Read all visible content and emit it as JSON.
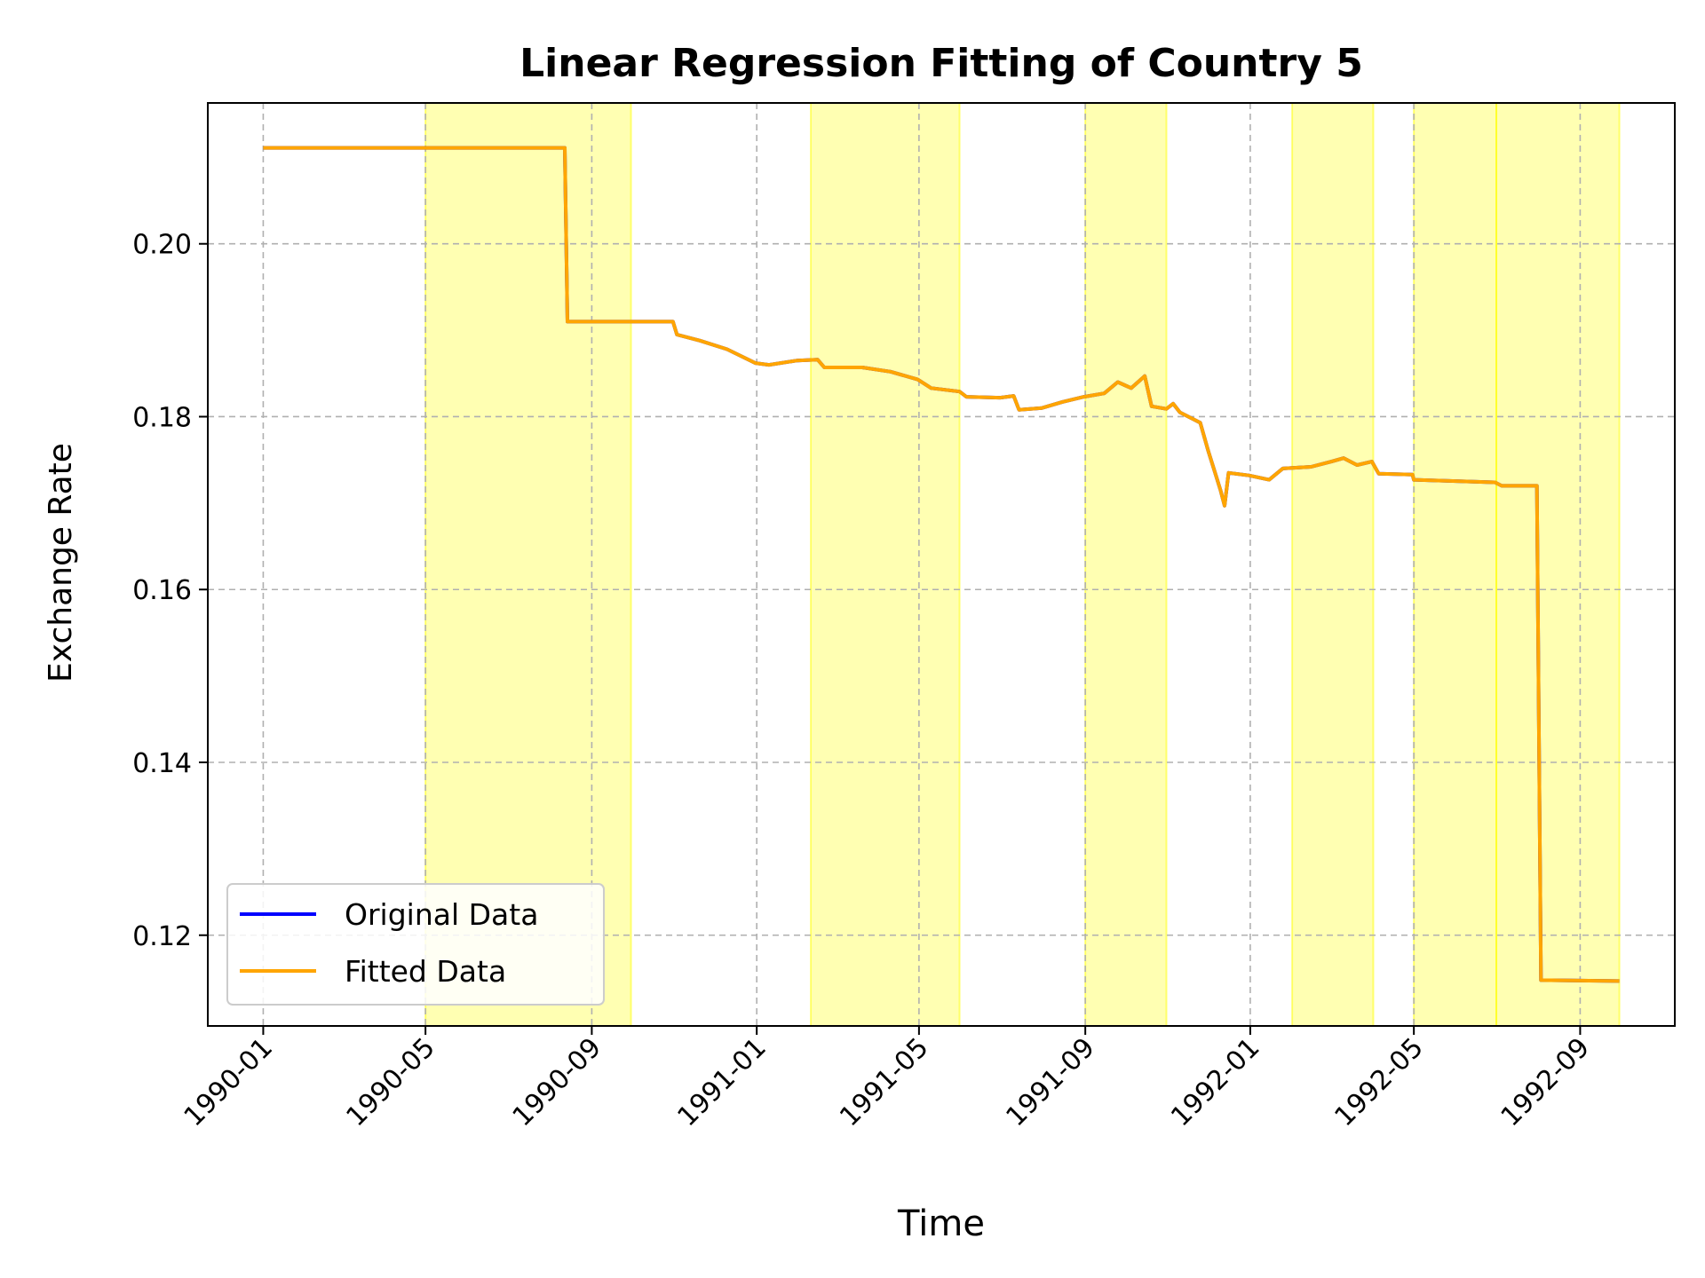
{
  "chart_data": {
    "type": "line",
    "title": "Linear Regression Fitting of Country 5",
    "xlabel": "Time",
    "ylabel": "Exchange Rate",
    "xlim": [
      "1989-11-21",
      "1992-11-10"
    ],
    "ylim": [
      0.1095,
      0.2163
    ],
    "x_ticks": [
      "1990-01",
      "1990-05",
      "1990-09",
      "1991-01",
      "1991-05",
      "1991-09",
      "1992-01",
      "1992-05",
      "1992-09"
    ],
    "y_ticks": [
      "0.12",
      "0.14",
      "0.16",
      "0.18",
      "0.20"
    ],
    "grid": true,
    "legend_position": "lower-left",
    "shaded_regions": [
      {
        "start": "1990-05-01",
        "end": "1990-09-30"
      },
      {
        "start": "1991-02-10",
        "end": "1991-05-31"
      },
      {
        "start": "1991-09-01",
        "end": "1991-10-31"
      },
      {
        "start": "1992-02-01",
        "end": "1992-04-01"
      },
      {
        "start": "1992-05-01",
        "end": "1992-07-01"
      },
      {
        "start": "1992-07-01",
        "end": "1992-09-30"
      }
    ],
    "series": [
      {
        "name": "Original Data",
        "color": "#0000ff",
        "points": [
          [
            "1990-01-01",
            0.2111
          ],
          [
            "1990-08-12",
            0.2111
          ],
          [
            "1990-08-14",
            0.191
          ],
          [
            "1990-10-31",
            0.191
          ],
          [
            "1990-11-03",
            0.1895
          ],
          [
            "1990-11-20",
            0.1888
          ],
          [
            "1990-12-10",
            0.1878
          ],
          [
            "1990-12-31",
            0.1862
          ],
          [
            "1991-01-10",
            0.186
          ],
          [
            "1991-01-31",
            0.1865
          ],
          [
            "1991-02-15",
            0.1866
          ],
          [
            "1991-02-20",
            0.1857
          ],
          [
            "1991-03-20",
            0.1857
          ],
          [
            "1991-04-10",
            0.1852
          ],
          [
            "1991-04-30",
            0.1843
          ],
          [
            "1991-05-10",
            0.1833
          ],
          [
            "1991-05-31",
            0.1829
          ],
          [
            "1991-06-05",
            0.1823
          ],
          [
            "1991-06-30",
            0.1822
          ],
          [
            "1991-07-10",
            0.1824
          ],
          [
            "1991-07-14",
            0.1808
          ],
          [
            "1991-07-31",
            0.181
          ],
          [
            "1991-08-15",
            0.1817
          ],
          [
            "1991-08-31",
            0.1823
          ],
          [
            "1991-09-15",
            0.1827
          ],
          [
            "1991-09-25",
            0.184
          ],
          [
            "1991-10-05",
            0.1833
          ],
          [
            "1991-10-15",
            0.1847
          ],
          [
            "1991-10-20",
            0.1812
          ],
          [
            "1991-10-31",
            0.1809
          ],
          [
            "1991-11-05",
            0.1815
          ],
          [
            "1991-11-10",
            0.1805
          ],
          [
            "1991-11-25",
            0.1793
          ],
          [
            "1991-12-01",
            0.176
          ],
          [
            "1991-12-05",
            0.174
          ],
          [
            "1991-12-10",
            0.1715
          ],
          [
            "1991-12-13",
            0.1697
          ],
          [
            "1991-12-16",
            0.1735
          ],
          [
            "1991-12-31",
            0.1732
          ],
          [
            "1992-01-15",
            0.1727
          ],
          [
            "1992-01-25",
            0.174
          ],
          [
            "1992-02-15",
            0.1742
          ],
          [
            "1992-03-01",
            0.1748
          ],
          [
            "1992-03-10",
            0.1752
          ],
          [
            "1992-03-20",
            0.1744
          ],
          [
            "1992-03-31",
            0.1748
          ],
          [
            "1992-04-05",
            0.1734
          ],
          [
            "1992-04-30",
            0.1733
          ],
          [
            "1992-05-01",
            0.1727
          ],
          [
            "1992-06-30",
            0.1724
          ],
          [
            "1992-07-05",
            0.172
          ],
          [
            "1992-07-31",
            0.172
          ],
          [
            "1992-08-03",
            0.1148
          ],
          [
            "1992-09-30",
            0.1147
          ]
        ]
      },
      {
        "name": "Fitted Data",
        "color": "#ffa500",
        "points": [
          [
            "1990-01-01",
            0.2111
          ],
          [
            "1990-08-12",
            0.2111
          ],
          [
            "1990-08-14",
            0.191
          ],
          [
            "1990-10-31",
            0.191
          ],
          [
            "1990-11-03",
            0.1895
          ],
          [
            "1990-11-20",
            0.1888
          ],
          [
            "1990-12-10",
            0.1878
          ],
          [
            "1990-12-31",
            0.1862
          ],
          [
            "1991-01-10",
            0.186
          ],
          [
            "1991-01-31",
            0.1865
          ],
          [
            "1991-02-15",
            0.1866
          ],
          [
            "1991-02-20",
            0.1857
          ],
          [
            "1991-03-20",
            0.1857
          ],
          [
            "1991-04-10",
            0.1852
          ],
          [
            "1991-04-30",
            0.1843
          ],
          [
            "1991-05-10",
            0.1833
          ],
          [
            "1991-05-31",
            0.1829
          ],
          [
            "1991-06-05",
            0.1823
          ],
          [
            "1991-06-30",
            0.1822
          ],
          [
            "1991-07-10",
            0.1824
          ],
          [
            "1991-07-14",
            0.1808
          ],
          [
            "1991-07-31",
            0.181
          ],
          [
            "1991-08-15",
            0.1817
          ],
          [
            "1991-08-31",
            0.1823
          ],
          [
            "1991-09-15",
            0.1827
          ],
          [
            "1991-09-25",
            0.184
          ],
          [
            "1991-10-05",
            0.1833
          ],
          [
            "1991-10-15",
            0.1847
          ],
          [
            "1991-10-20",
            0.1812
          ],
          [
            "1991-10-31",
            0.1809
          ],
          [
            "1991-11-05",
            0.1815
          ],
          [
            "1991-11-10",
            0.1805
          ],
          [
            "1991-11-25",
            0.1793
          ],
          [
            "1991-12-01",
            0.176
          ],
          [
            "1991-12-05",
            0.174
          ],
          [
            "1991-12-10",
            0.1715
          ],
          [
            "1991-12-13",
            0.1697
          ],
          [
            "1991-12-16",
            0.1735
          ],
          [
            "1991-12-31",
            0.1732
          ],
          [
            "1992-01-15",
            0.1727
          ],
          [
            "1992-01-25",
            0.174
          ],
          [
            "1992-02-15",
            0.1742
          ],
          [
            "1992-03-01",
            0.1748
          ],
          [
            "1992-03-10",
            0.1752
          ],
          [
            "1992-03-20",
            0.1744
          ],
          [
            "1992-03-31",
            0.1748
          ],
          [
            "1992-04-05",
            0.1734
          ],
          [
            "1992-04-30",
            0.1733
          ],
          [
            "1992-05-01",
            0.1727
          ],
          [
            "1992-06-30",
            0.1724
          ],
          [
            "1992-07-05",
            0.172
          ],
          [
            "1992-07-31",
            0.172
          ],
          [
            "1992-08-03",
            0.1148
          ],
          [
            "1992-09-30",
            0.1147
          ]
        ]
      }
    ],
    "colors": {
      "shade": "#ffff00",
      "grid": "#b0b0b0",
      "axes": "#000000",
      "legend_border": "#cccccc"
    }
  }
}
